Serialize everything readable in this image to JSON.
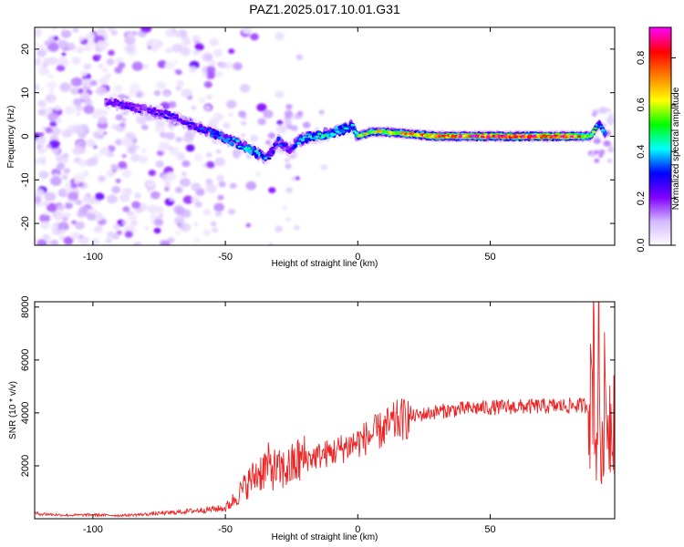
{
  "title": "PAZ1.2025.017.10.01.G31",
  "chart_data": [
    {
      "type": "heatmap",
      "xlabel": "Height of straight line (km)",
      "ylabel": "Frequency (Hz)",
      "xlim": [
        -122,
        97
      ],
      "ylim": [
        -25,
        25
      ],
      "xticks": [
        -100,
        -50,
        0,
        50
      ],
      "xtick_labels": [
        "-100",
        "-50",
        "0",
        "50"
      ],
      "yticks": [
        -20,
        -10,
        0,
        10,
        20
      ],
      "ytick_labels": [
        "-20",
        "-10",
        "0",
        "10",
        "20"
      ],
      "colorbar": {
        "label": "Normalized spectral amplitude",
        "range": [
          0,
          0.93
        ],
        "ticks": [
          0.0,
          0.2,
          0.4,
          0.6,
          0.8
        ],
        "tick_labels": [
          "0.0",
          "0.2",
          "0.4",
          "0.6",
          "0.8"
        ],
        "colormap": [
          "#ffffff",
          "#d4b8ff",
          "#8000ff",
          "#0000ff",
          "#00ffff",
          "#00ff00",
          "#ffff00",
          "#ff8000",
          "#ff0000",
          "#ff00ff"
        ]
      },
      "ridge": [
        {
          "x": -95,
          "f": 8,
          "amp": 0.22
        },
        {
          "x": -88,
          "f": 7,
          "amp": 0.24
        },
        {
          "x": -80,
          "f": 6,
          "amp": 0.22
        },
        {
          "x": -73,
          "f": 5,
          "amp": 0.25
        },
        {
          "x": -68,
          "f": 4,
          "amp": 0.23
        },
        {
          "x": -63,
          "f": 2.5,
          "amp": 0.26
        },
        {
          "x": -58,
          "f": 1.5,
          "amp": 0.3
        },
        {
          "x": -52,
          "f": 0,
          "amp": 0.32
        },
        {
          "x": -46,
          "f": -1.5,
          "amp": 0.38
        },
        {
          "x": -42,
          "f": -2.5,
          "amp": 0.42
        },
        {
          "x": -38,
          "f": -4,
          "amp": 0.4
        },
        {
          "x": -34,
          "f": -5,
          "amp": 0.3
        },
        {
          "x": -30,
          "f": -1,
          "amp": 0.3
        },
        {
          "x": -26,
          "f": -3,
          "amp": 0.28
        },
        {
          "x": -22,
          "f": -1,
          "amp": 0.35
        },
        {
          "x": -18,
          "f": 0,
          "amp": 0.4
        },
        {
          "x": -12,
          "f": 0.5,
          "amp": 0.45
        },
        {
          "x": -6,
          "f": 1.5,
          "amp": 0.45
        },
        {
          "x": -2,
          "f": 2.5,
          "amp": 0.4
        },
        {
          "x": 0,
          "f": 0,
          "amp": 0.55
        },
        {
          "x": 5,
          "f": 1,
          "amp": 0.6
        },
        {
          "x": 10,
          "f": 1,
          "amp": 0.62
        },
        {
          "x": 20,
          "f": 0.5,
          "amp": 0.7
        },
        {
          "x": 30,
          "f": 0,
          "amp": 0.75
        },
        {
          "x": 40,
          "f": 0,
          "amp": 0.8
        },
        {
          "x": 50,
          "f": 0,
          "amp": 0.82
        },
        {
          "x": 60,
          "f": 0,
          "amp": 0.85
        },
        {
          "x": 70,
          "f": 0,
          "amp": 0.85
        },
        {
          "x": 80,
          "f": 0,
          "amp": 0.83
        },
        {
          "x": 88,
          "f": 0,
          "amp": 0.6
        },
        {
          "x": 91,
          "f": 3,
          "amp": 0.35
        },
        {
          "x": 94,
          "f": 0,
          "amp": 0.4
        }
      ]
    },
    {
      "type": "line",
      "xlabel": "Height of straight line (km)",
      "ylabel": "SNR (10 * v/v)",
      "xlim": [
        -122,
        97
      ],
      "ylim": [
        0,
        8200
      ],
      "xticks": [
        -100,
        -50,
        0,
        50
      ],
      "xtick_labels": [
        "-100",
        "-50",
        "0",
        "50"
      ],
      "yticks": [
        2000,
        4000,
        6000,
        8000
      ],
      "ytick_labels": [
        "2000",
        "4000",
        "6000",
        "8000"
      ],
      "color": "#ee2222",
      "series": [
        {
          "x": [
            -122,
            -110,
            -100,
            -90,
            -80,
            -70,
            -60,
            -50,
            -46,
            -42,
            -38,
            -34,
            -30,
            -26,
            -22,
            -18,
            -14,
            -10,
            -5,
            0,
            5,
            10,
            15,
            20,
            25,
            30,
            35,
            40,
            45,
            50,
            55,
            60,
            65,
            70,
            75,
            80,
            85,
            88,
            89,
            90,
            91,
            92,
            93,
            95,
            97
          ],
          "y": [
            200,
            130,
            150,
            120,
            170,
            230,
            320,
            400,
            800,
            1300,
            1700,
            2000,
            1800,
            1900,
            2200,
            2300,
            2400,
            2500,
            2700,
            2900,
            3150,
            3400,
            3700,
            3850,
            3950,
            4050,
            4100,
            4150,
            4180,
            4200,
            4220,
            4230,
            4240,
            4250,
            4260,
            4270,
            4280,
            4300,
            7000,
            2000,
            6500,
            1500,
            4500,
            3800,
            4200
          ]
        }
      ]
    }
  ]
}
